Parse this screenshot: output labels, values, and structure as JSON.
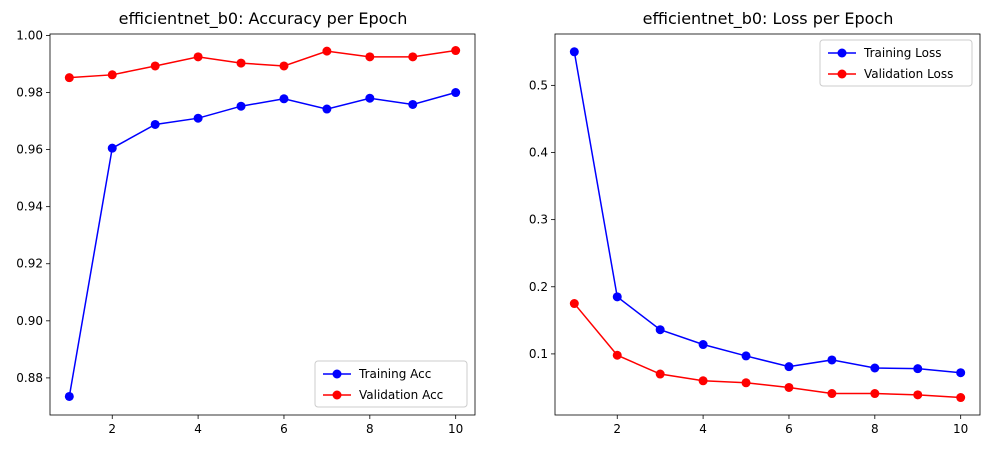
{
  "chart_data": [
    {
      "type": "line",
      "title": "efficientnet_b0: Accuracy per Epoch",
      "xlabel": "",
      "ylabel": "",
      "x": [
        1,
        2,
        3,
        4,
        5,
        6,
        7,
        8,
        9,
        10
      ],
      "xlim": [
        0.55,
        10.45
      ],
      "ylim": [
        0.867,
        1.0005
      ],
      "xticks": [
        2,
        4,
        6,
        8,
        10
      ],
      "xtick_labels": [
        "2",
        "4",
        "6",
        "8",
        "10"
      ],
      "yticks": [
        0.88,
        0.9,
        0.92,
        0.94,
        0.96,
        0.98,
        1.0
      ],
      "ytick_labels": [
        "0.88",
        "0.90",
        "0.92",
        "0.94",
        "0.96",
        "0.98",
        "1.00"
      ],
      "grid": false,
      "legend_position": "lower-right",
      "series": [
        {
          "name": "Training Acc",
          "color": "#0000ff",
          "values": [
            0.8735,
            0.9605,
            0.9688,
            0.971,
            0.9752,
            0.9778,
            0.9742,
            0.978,
            0.9758,
            0.98
          ]
        },
        {
          "name": "Validation Acc",
          "color": "#ff0000",
          "values": [
            0.9852,
            0.9862,
            0.9893,
            0.9925,
            0.9903,
            0.9893,
            0.9945,
            0.9925,
            0.9925,
            0.9947
          ]
        }
      ]
    },
    {
      "type": "line",
      "title": "efficientnet_b0: Loss per Epoch",
      "xlabel": "",
      "ylabel": "",
      "x": [
        1,
        2,
        3,
        4,
        5,
        6,
        7,
        8,
        9,
        10
      ],
      "xlim": [
        0.55,
        10.45
      ],
      "ylim": [
        0.009,
        0.5765
      ],
      "xticks": [
        2,
        4,
        6,
        8,
        10
      ],
      "xtick_labels": [
        "2",
        "4",
        "6",
        "8",
        "10"
      ],
      "yticks": [
        0.1,
        0.2,
        0.3,
        0.4,
        0.5
      ],
      "ytick_labels": [
        "0.1",
        "0.2",
        "0.3",
        "0.4",
        "0.5"
      ],
      "grid": false,
      "legend_position": "upper-right",
      "series": [
        {
          "name": "Training Loss",
          "color": "#0000ff",
          "values": [
            0.55,
            0.185,
            0.136,
            0.114,
            0.097,
            0.081,
            0.091,
            0.079,
            0.078,
            0.072
          ]
        },
        {
          "name": "Validation Loss",
          "color": "#ff0000",
          "values": [
            0.175,
            0.098,
            0.07,
            0.06,
            0.057,
            0.05,
            0.041,
            0.041,
            0.039,
            0.035
          ]
        }
      ]
    }
  ]
}
